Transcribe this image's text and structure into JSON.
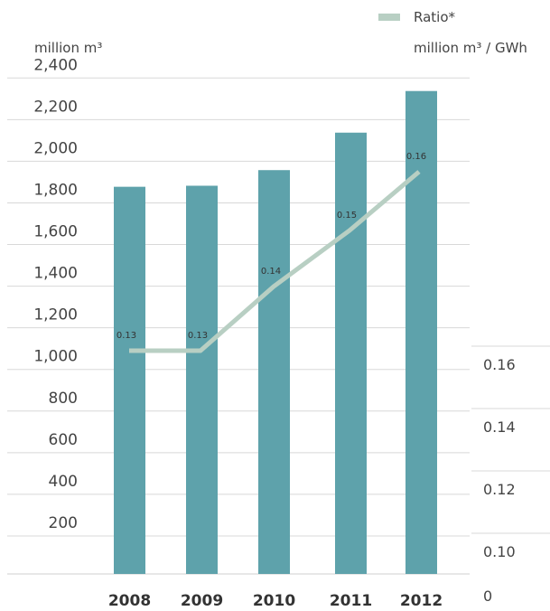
{
  "chart_data": {
    "type": "bar",
    "title": "",
    "xlabel": "",
    "ylabel": "million m³",
    "y2label": "million m³ / GWh",
    "categories": [
      "2008",
      "2009",
      "2010",
      "2011",
      "2012"
    ],
    "ylim": [
      0,
      2400
    ],
    "yticks": [
      "200",
      "400",
      "600",
      "800",
      "1,000",
      "1,200",
      "1,400",
      "1,600",
      "1,800",
      "2,000",
      "2,200",
      "2,400"
    ],
    "y2ticks": [
      "0",
      "0.10",
      "0.12",
      "0.14",
      "0.16"
    ],
    "series": [
      {
        "type": "bar",
        "values": [
          1860,
          1865,
          1940,
          2120,
          2320
        ],
        "color": "#5ea2ab"
      },
      {
        "name": "Ratio*",
        "type": "line",
        "axis": "right",
        "values": [
          0.13,
          0.13,
          0.14,
          0.15,
          0.16
        ],
        "point_labels": [
          "0.13",
          "0.13",
          "0.14",
          "0.15",
          "0.16"
        ],
        "color": "#b8cfc3"
      }
    ],
    "legend": {
      "position": "top-right",
      "label": "Ratio*"
    },
    "grid": true
  }
}
